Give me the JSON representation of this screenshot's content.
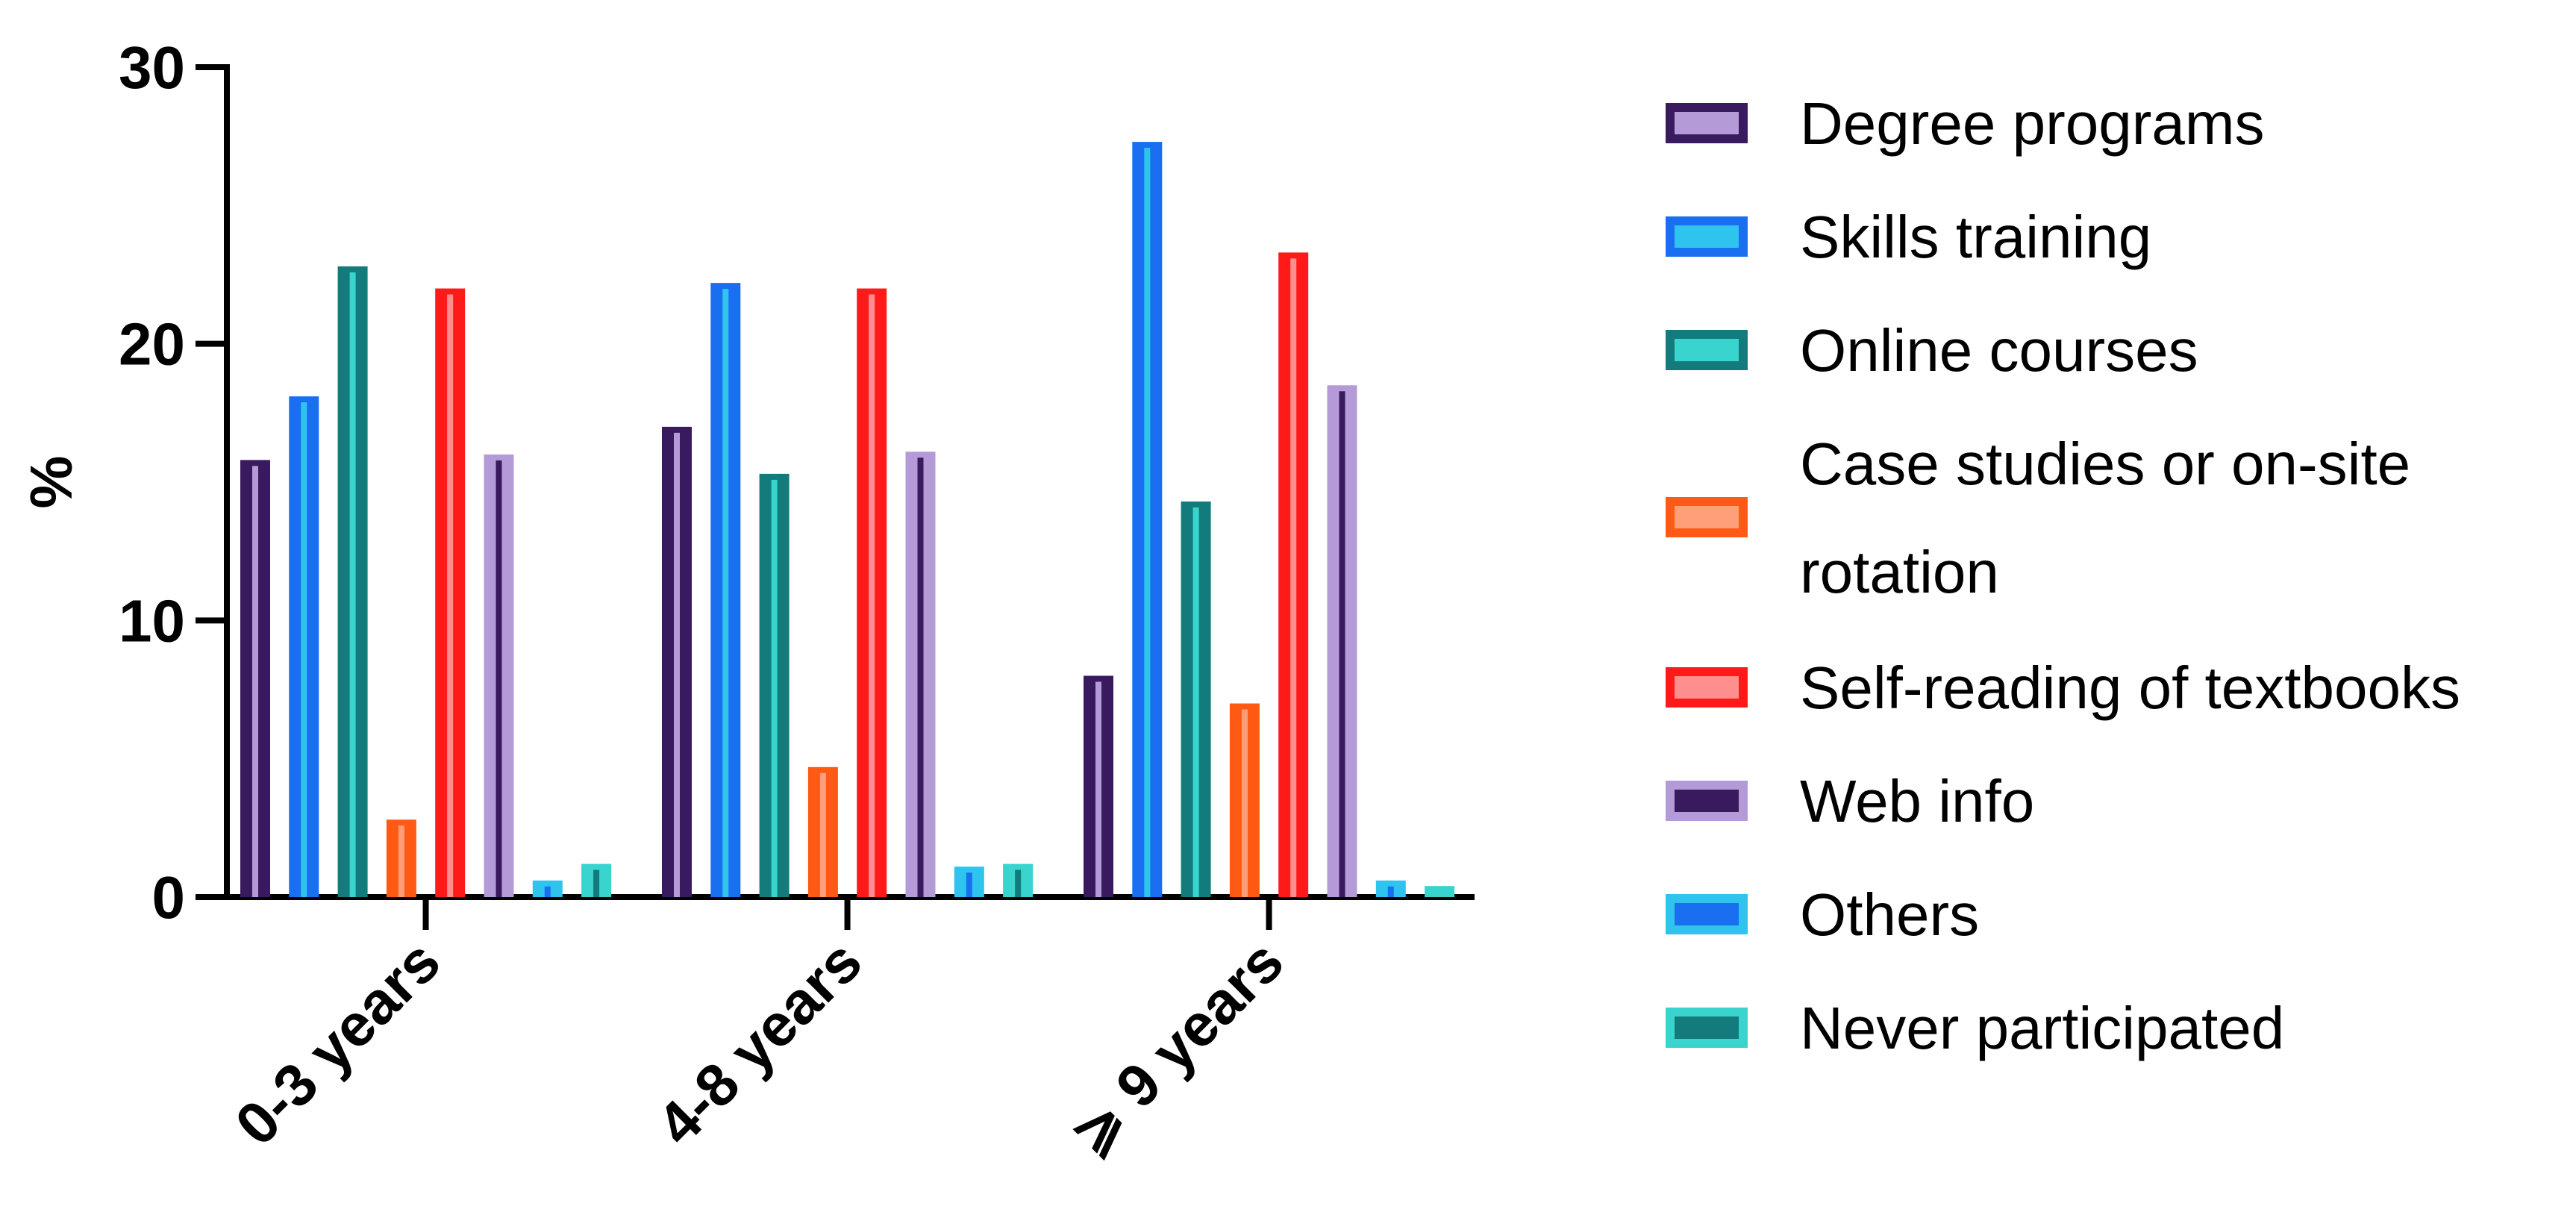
{
  "chart_data": {
    "type": "bar",
    "title": "",
    "xlabel": "",
    "ylabel": "%",
    "ylim": [
      0,
      30
    ],
    "yticks": [
      "0",
      "10",
      "20",
      "30"
    ],
    "grid": false,
    "legend_position": "right",
    "categories": [
      "0-3 years",
      "4-8 years",
      "⩾ 9 years"
    ],
    "series": [
      {
        "name": "Degree programs",
        "fill": "#3a1a5e",
        "inner": "#b59ad8",
        "values": [
          15.8,
          17.0,
          8.0
        ]
      },
      {
        "name": "Skills training",
        "fill": "#1a6ff0",
        "inner": "#2ec4ee",
        "values": [
          18.1,
          22.2,
          27.3
        ]
      },
      {
        "name": "Online courses",
        "fill": "#137b7b",
        "inner": "#3ad4cf",
        "values": [
          22.8,
          15.3,
          14.3
        ]
      },
      {
        "name": "Case studies or on-site rotation",
        "legend_lines": [
          "Case studies or on-site",
          "rotation"
        ],
        "fill": "#ff5a14",
        "inner": "#ff9f7a",
        "values": [
          2.8,
          4.7,
          7.0
        ]
      },
      {
        "name": "Self-reading of textbooks",
        "fill": "#ff1a1a",
        "inner": "#ff8f8f",
        "values": [
          22.0,
          22.0,
          23.3
        ]
      },
      {
        "name": "Web info",
        "fill": "#b59ad8",
        "inner": "#3a1a5e",
        "values": [
          16.0,
          16.1,
          18.5
        ]
      },
      {
        "name": "Others",
        "fill": "#2ec4ee",
        "inner": "#1a6ff0",
        "values": [
          0.6,
          1.1,
          0.6
        ]
      },
      {
        "name": "Never participated",
        "fill": "#3ad4cf",
        "inner": "#137b7b",
        "values": [
          1.2,
          1.2,
          0.4
        ]
      }
    ]
  }
}
